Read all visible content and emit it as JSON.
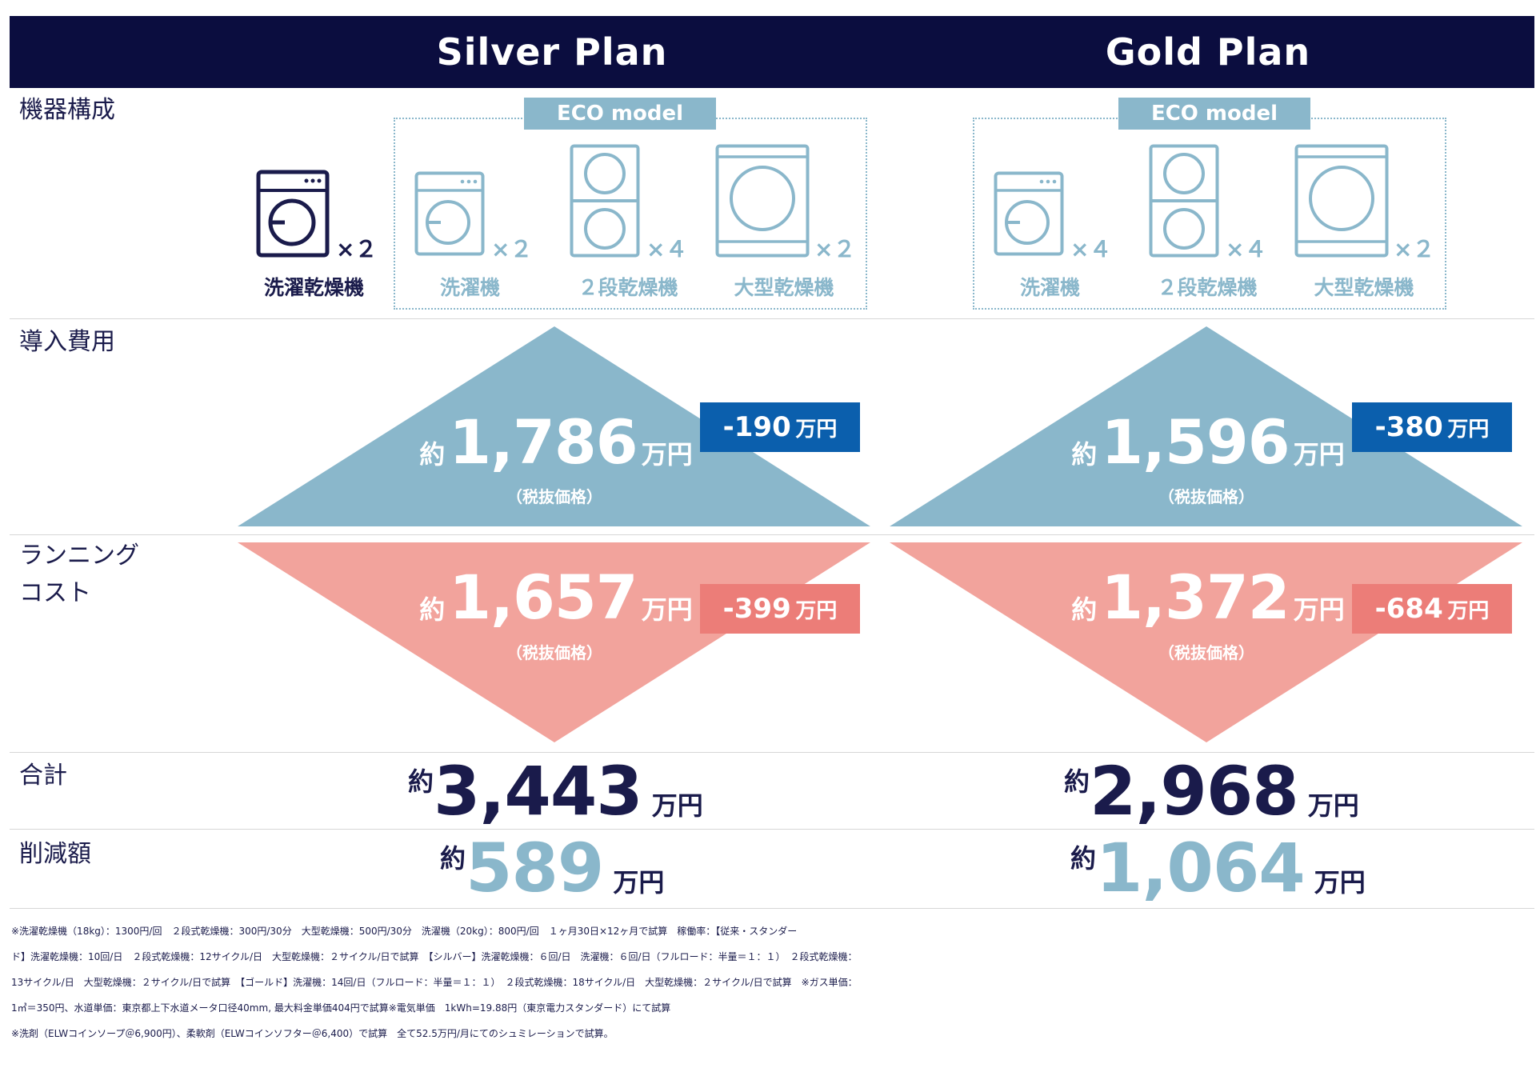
{
  "plans": [
    {
      "title": "Silver Plan",
      "std_machine": {
        "label": "洗濯乾燥機",
        "mult": "×２"
      },
      "eco_tag": "ECO model",
      "eco_machines": [
        {
          "label": "洗濯機",
          "mult": "×２"
        },
        {
          "label": "２段乾燥機",
          "mult": "×４"
        },
        {
          "label": "大型乾燥機",
          "mult": "×２"
        }
      ],
      "initial": {
        "prefix": "約",
        "value": "1,786",
        "unit": "万円",
        "note": "（税抜価格）",
        "badge_value": "-190",
        "badge_unit": "万円"
      },
      "running": {
        "prefix": "約",
        "value": "1,657",
        "unit": "万円",
        "note": "（税抜価格）",
        "badge_value": "-399",
        "badge_unit": "万円"
      },
      "total": {
        "prefix": "約",
        "value": "3,443",
        "unit": "万円"
      },
      "savings": {
        "prefix": "約",
        "value": "589",
        "unit": "万円"
      }
    },
    {
      "title": "Gold Plan",
      "eco_tag": "ECO model",
      "eco_machines": [
        {
          "label": "洗濯機",
          "mult": "×４"
        },
        {
          "label": "２段乾燥機",
          "mult": "×４"
        },
        {
          "label": "大型乾燥機",
          "mult": "×２"
        }
      ],
      "initial": {
        "prefix": "約",
        "value": "1,596",
        "unit": "万円",
        "note": "（税抜価格）",
        "badge_value": "-380",
        "badge_unit": "万円"
      },
      "running": {
        "prefix": "約",
        "value": "1,372",
        "unit": "万円",
        "note": "（税抜価格）",
        "badge_value": "-684",
        "badge_unit": "万円"
      },
      "total": {
        "prefix": "約",
        "value": "2,968",
        "unit": "万円"
      },
      "savings": {
        "prefix": "約",
        "value": "1,064",
        "unit": "万円"
      }
    }
  ],
  "rows": {
    "equipment": "機器構成",
    "initial_cost": "導入費用",
    "running_cost_line1": "ランニング",
    "running_cost_line2": "コスト",
    "total": "合計",
    "savings": "削減額"
  },
  "notes": [
    "※洗濯乾燥機（18kg）：1300円/回　２段式乾燥機：300円/30分　大型乾燥機：500円/30分　洗濯機（20kg）：800円/回　１ヶ月30日×12ヶ月で試算　稼働率：【従来・スタンダー",
    "ド】洗濯乾燥機：10回/日　２段式乾燥機：12サイクル/日　大型乾燥機：２サイクル/日で試算　【シルバー】洗濯乾燥機：６回/日　洗濯機：６回/日（フルロード：半量＝１：１）　２段式乾燥機：",
    "13サイクル/日　大型乾燥機：２サイクル/日で試算　【ゴールド】洗濯機：14回/日（フルロード：半量＝１：１）　２段式乾燥機：18サイクル/日　大型乾燥機：２サイクル/日で試算　※ガス単価：",
    "1㎥＝350円、水道単価：東京都上下水道メータ口径40mm, 最大料金単価404円で試算※電気単価　1kWh=19.88円（東京電力スタンダード）にて試算",
    "※洗剤（ELWコインソープ＠6,900円）、柔軟剤（ELWコインソフター＠6,400）で試算　全て52.5万円/月にてのシュミレーションで試算。"
  ],
  "colors": {
    "navy": "#0b0d3f",
    "light_blue": "#8ab7cb",
    "pink": "#f2a39c",
    "badge_blue": "#0b5fad",
    "badge_red": "#ec7d78"
  }
}
